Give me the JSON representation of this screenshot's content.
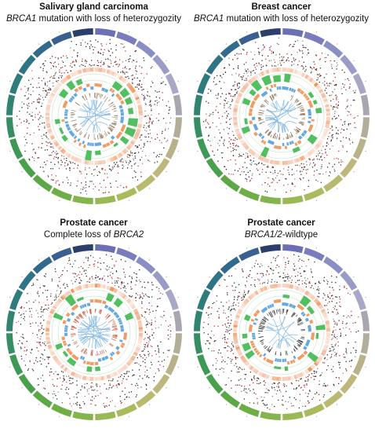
{
  "panels": [
    {
      "title": "Salivary gland carcinoma",
      "gene": "BRCA1",
      "subtitle_rest": " mutation with loss of heterozygozity",
      "seed": 11,
      "links": 18,
      "radial_color": "#9a8468"
    },
    {
      "title": "Breast cancer",
      "gene": "BRCA1",
      "subtitle_rest": " mutation with loss of heterozygozity",
      "seed": 23,
      "links": 22,
      "radial_color": "#8a7050"
    },
    {
      "title": "Prostate cancer",
      "subtitle_prefix": "Complete loss of ",
      "gene": "BRCA2",
      "seed": 37,
      "links": 26,
      "radial_color": "#c8604a"
    },
    {
      "title": "Prostate cancer",
      "gene": "BRCA1/2",
      "subtitle_rest": "-wildtype",
      "seed": 53,
      "links": 12,
      "radial_color": "#3a3a3a"
    }
  ],
  "colors": {
    "link": "#7fb6e2",
    "gain": "#3fb84f",
    "cn_orange": "#f08a48",
    "cn_blue": "#4a9ad8",
    "heat": "#f3b899",
    "point_red": "#d23a3a",
    "point_dark": "#333333",
    "point_grey": "#8a8a8a",
    "ring_line": "#9fd3a6"
  },
  "ideogram_colors": [
    "#6b6fb5",
    "#7b7cbd",
    "#8b8dc5",
    "#9a9cc7",
    "#a8a8c6",
    "#aaa6b0",
    "#b2ae9a",
    "#b8b28a",
    "#bdb77c",
    "#b8bb6f",
    "#aabb5e",
    "#98b953",
    "#84b44c",
    "#6fae45",
    "#5ca846",
    "#4aa14c",
    "#3e9957",
    "#368f63",
    "#31846f",
    "#2f7c7c",
    "#2f7386",
    "#316a8c",
    "#3a6092",
    "#2b3f6a"
  ]
}
